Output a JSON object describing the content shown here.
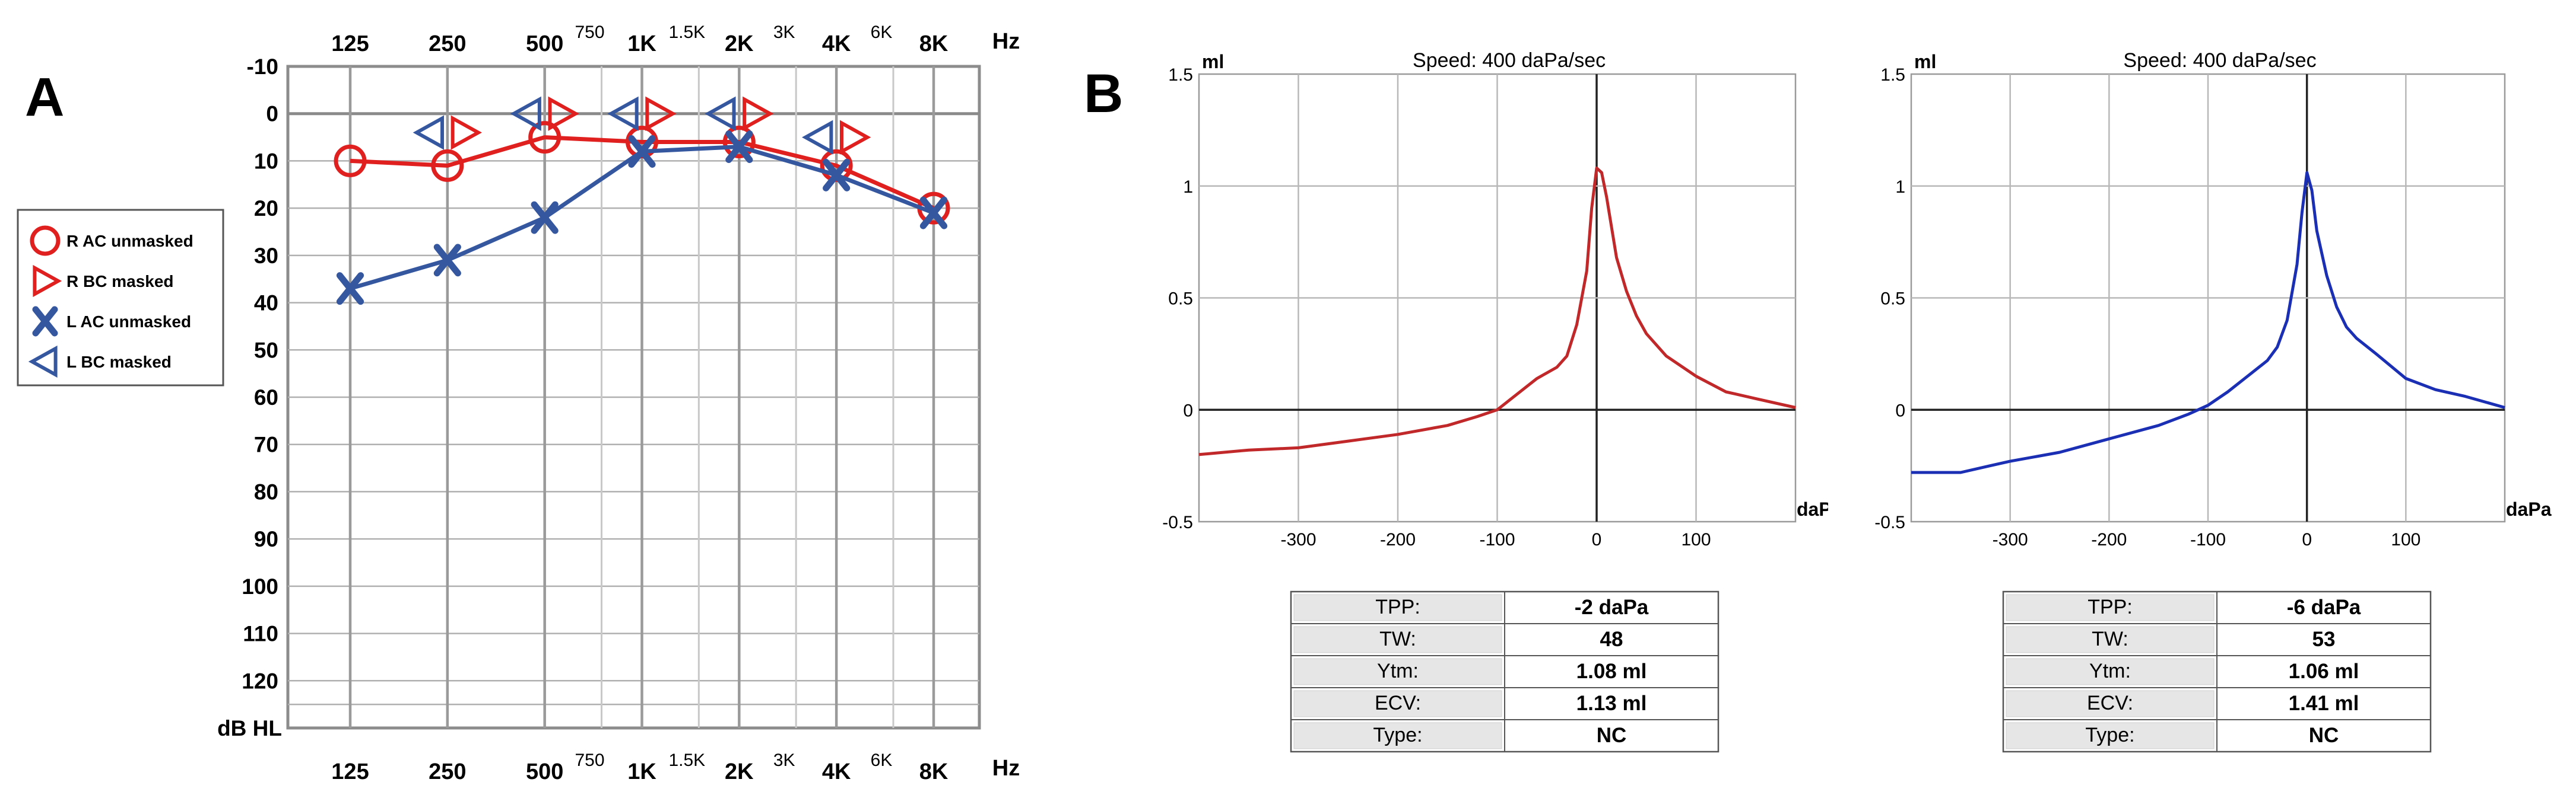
{
  "panel_labels": {
    "a": "A",
    "b": "B"
  },
  "colors": {
    "red": "#e01f1f",
    "blue": "#3557a0",
    "tymp_red": "#c0282a",
    "tymp_blue": "#1b2fb5",
    "grid": "#b0b0b0",
    "frame": "#8c8c8c"
  },
  "legend": [
    {
      "symbol": "circle",
      "color": "#e01f1f",
      "label": "R AC unmasked"
    },
    {
      "symbol": "tri-right",
      "color": "#e01f1f",
      "label": "R BC masked"
    },
    {
      "symbol": "x",
      "color": "#3557a0",
      "label": "L AC unmasked"
    },
    {
      "symbol": "tri-left",
      "color": "#3557a0",
      "label": "L BC masked"
    }
  ],
  "chart_data": [
    {
      "type": "line",
      "subtype": "audiogram",
      "x_unit": "Hz",
      "y_unit": "dB HL",
      "frequencies_major": [
        "125",
        "250",
        "500",
        "1K",
        "2K",
        "4K",
        "8K"
      ],
      "frequencies_minor": [
        "750",
        "1.5K",
        "3K",
        "6K"
      ],
      "ylim": [
        -10,
        130
      ],
      "y_ticks": [
        "-10",
        "0",
        "10",
        "20",
        "30",
        "40",
        "50",
        "60",
        "70",
        "80",
        "90",
        "100",
        "110",
        "120"
      ],
      "series": [
        {
          "name": "R AC unmasked",
          "marker": "circle",
          "color": "#e01f1f",
          "connected": true,
          "points": [
            [
              125,
              10
            ],
            [
              250,
              11
            ],
            [
              500,
              5
            ],
            [
              1000,
              6
            ],
            [
              2000,
              6
            ],
            [
              4000,
              11
            ],
            [
              8000,
              20
            ]
          ]
        },
        {
          "name": "R BC masked",
          "marker": "tri-right",
          "color": "#e01f1f",
          "connected": false,
          "points": [
            [
              250,
              4
            ],
            [
              500,
              0
            ],
            [
              1000,
              0
            ],
            [
              2000,
              0
            ],
            [
              4000,
              5
            ]
          ]
        },
        {
          "name": "L AC unmasked",
          "marker": "x",
          "color": "#3557a0",
          "connected": true,
          "points": [
            [
              125,
              37
            ],
            [
              250,
              31
            ],
            [
              500,
              22
            ],
            [
              1000,
              8
            ],
            [
              2000,
              7
            ],
            [
              4000,
              13
            ],
            [
              8000,
              21
            ]
          ]
        },
        {
          "name": "L BC masked",
          "marker": "tri-left",
          "color": "#3557a0",
          "connected": false,
          "points": [
            [
              250,
              4
            ],
            [
              500,
              0
            ],
            [
              1000,
              0
            ],
            [
              2000,
              0
            ],
            [
              4000,
              5
            ]
          ]
        }
      ]
    },
    {
      "type": "line",
      "subtype": "tympanogram",
      "title": "Speed: 400 daPa/sec",
      "ylabel": "ml",
      "xlabel": "daPa",
      "xlim": [
        -400,
        200
      ],
      "ylim": [
        -0.5,
        1.5
      ],
      "x_ticks": [
        "-300",
        "-200",
        "-100",
        "0",
        "100"
      ],
      "y_ticks": [
        "1.5",
        "1",
        "0.5",
        "0",
        "-0.5"
      ],
      "color": "#c0282a",
      "x": [
        -400,
        -350,
        -300,
        -250,
        -200,
        -150,
        -120,
        -100,
        -80,
        -60,
        -40,
        -30,
        -20,
        -10,
        -5,
        0,
        5,
        10,
        20,
        30,
        40,
        50,
        70,
        100,
        130,
        160,
        200
      ],
      "y": [
        -0.2,
        -0.18,
        -0.17,
        -0.14,
        -0.11,
        -0.07,
        -0.03,
        0.0,
        0.07,
        0.14,
        0.19,
        0.24,
        0.38,
        0.62,
        0.9,
        1.08,
        1.06,
        0.95,
        0.68,
        0.53,
        0.42,
        0.34,
        0.24,
        0.15,
        0.08,
        0.05,
        0.01
      ],
      "table": [
        {
          "label": "TPP:",
          "value": "-2 daPa"
        },
        {
          "label": "TW:",
          "value": "48"
        },
        {
          "label": "Ytm:",
          "value": "1.08 ml"
        },
        {
          "label": "ECV:",
          "value": "1.13 ml"
        },
        {
          "label": "Type:",
          "value": "NC"
        }
      ]
    },
    {
      "type": "line",
      "subtype": "tympanogram",
      "title": "Speed: 400 daPa/sec",
      "ylabel": "ml",
      "xlabel": "daPa",
      "xlim": [
        -400,
        200
      ],
      "ylim": [
        -0.5,
        1.5
      ],
      "x_ticks": [
        "-300",
        "-200",
        "-100",
        "0",
        "100"
      ],
      "y_ticks": [
        "1.5",
        "1",
        "0.5",
        "0",
        "-0.5"
      ],
      "color": "#1b2fb5",
      "x": [
        -400,
        -350,
        -320,
        -300,
        -250,
        -200,
        -150,
        -120,
        -100,
        -80,
        -60,
        -40,
        -30,
        -20,
        -10,
        -5,
        0,
        5,
        10,
        20,
        30,
        40,
        50,
        70,
        100,
        130,
        160,
        200
      ],
      "y": [
        -0.28,
        -0.28,
        -0.25,
        -0.23,
        -0.19,
        -0.13,
        -0.07,
        -0.02,
        0.02,
        0.08,
        0.15,
        0.22,
        0.28,
        0.4,
        0.65,
        0.88,
        1.06,
        0.98,
        0.8,
        0.6,
        0.46,
        0.37,
        0.32,
        0.25,
        0.14,
        0.09,
        0.06,
        0.01
      ],
      "table": [
        {
          "label": "TPP:",
          "value": "-6 daPa"
        },
        {
          "label": "TW:",
          "value": "53"
        },
        {
          "label": "Ytm:",
          "value": "1.06 ml"
        },
        {
          "label": "ECV:",
          "value": "1.41 ml"
        },
        {
          "label": "Type:",
          "value": "NC"
        }
      ]
    }
  ]
}
